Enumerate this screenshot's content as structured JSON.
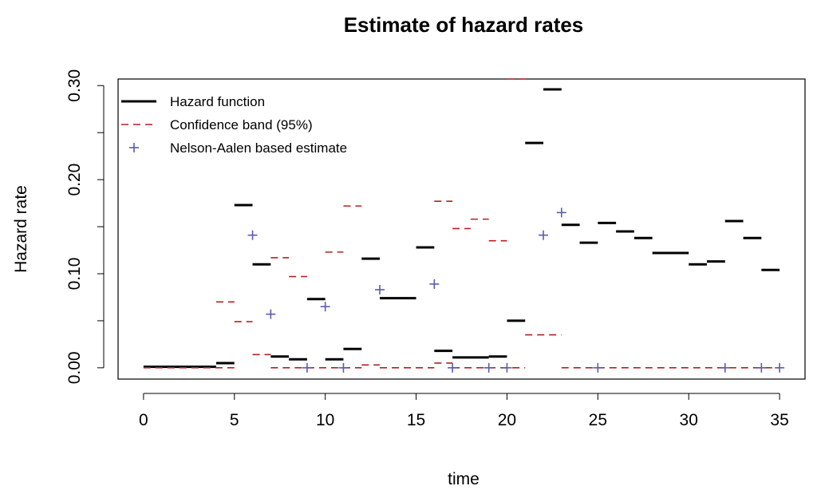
{
  "chart_data": {
    "type": "step",
    "title": "Estimate of hazard rates",
    "xlabel": "time",
    "ylabel": "Hazard rate",
    "xlim": [
      -1.4,
      36.4
    ],
    "ylim": [
      -0.012,
      0.307
    ],
    "xticks": [
      0,
      5,
      10,
      15,
      20,
      25,
      30,
      35
    ],
    "xtick_labels": [
      "0",
      "5",
      "10",
      "15",
      "20",
      "25",
      "30",
      "35"
    ],
    "yticks": [
      0.0,
      0.1,
      0.2,
      0.3
    ],
    "ytick_labels": [
      "0.00",
      "0.10",
      "0.20",
      "0.30"
    ],
    "minor_yticks": [
      0.05,
      0.15,
      0.25
    ],
    "grid": false,
    "legend_position": "top-left",
    "series": [
      {
        "name": "Hazard function",
        "kind": "segments",
        "color": "#000000",
        "line": "solid",
        "segments": [
          [
            0,
            4,
            0.001
          ],
          [
            4,
            5,
            0.005
          ],
          [
            5,
            6,
            0.173
          ],
          [
            6,
            7,
            0.11
          ],
          [
            7,
            8,
            0.012
          ],
          [
            8,
            9,
            0.009
          ],
          [
            9,
            10,
            0.073
          ],
          [
            10,
            11,
            0.009
          ],
          [
            11,
            12,
            0.02
          ],
          [
            12,
            13,
            0.116
          ],
          [
            13,
            15,
            0.074
          ],
          [
            15,
            16,
            0.128
          ],
          [
            16,
            17,
            0.018
          ],
          [
            17,
            19,
            0.011
          ],
          [
            19,
            20,
            0.012
          ],
          [
            20,
            21,
            0.05
          ],
          [
            21,
            22,
            0.239
          ],
          [
            22,
            23,
            0.296
          ],
          [
            23,
            24,
            0.152
          ],
          [
            24,
            25,
            0.133
          ],
          [
            25,
            26,
            0.154
          ],
          [
            26,
            27,
            0.145
          ],
          [
            27,
            28,
            0.138
          ],
          [
            28,
            30,
            0.122
          ],
          [
            30,
            31,
            0.11
          ],
          [
            31,
            32,
            0.113
          ],
          [
            32,
            33,
            0.156
          ],
          [
            33,
            34,
            0.138
          ],
          [
            34,
            35,
            0.104
          ]
        ]
      },
      {
        "name": "Confidence band (95%)",
        "kind": "segments",
        "color": "#b22222",
        "line": "dashed",
        "segments": [
          [
            0,
            5,
            0.0
          ],
          [
            4,
            5,
            0.07
          ],
          [
            5,
            6,
            0.049
          ],
          [
            6,
            7,
            0.014
          ],
          [
            7,
            8,
            0.117
          ],
          [
            7,
            9,
            0.0
          ],
          [
            8,
            9,
            0.097
          ],
          [
            9,
            12,
            0.0
          ],
          [
            10,
            11,
            0.123
          ],
          [
            11,
            12,
            0.172
          ],
          [
            12,
            13,
            0.003
          ],
          [
            13,
            16,
            0.0
          ],
          [
            16,
            17,
            0.005
          ],
          [
            16,
            17,
            0.177
          ],
          [
            17,
            21,
            0.0
          ],
          [
            17,
            18,
            0.148
          ],
          [
            18,
            19,
            0.158
          ],
          [
            19,
            20,
            0.135
          ],
          [
            20,
            21,
            0.307
          ],
          [
            21,
            23,
            0.035
          ],
          [
            23,
            35,
            0.0
          ]
        ]
      },
      {
        "name": "Nelson-Aalen based estimate",
        "kind": "points",
        "color": "#5b5bb0",
        "marker": "plus",
        "x": [
          6,
          7,
          9,
          10,
          11,
          13,
          16,
          17,
          19,
          20,
          22,
          23,
          25,
          32,
          34,
          35
        ],
        "y": [
          0.141,
          0.057,
          0.0,
          0.065,
          0.0,
          0.083,
          0.089,
          0.0,
          0.0,
          0.0,
          0.141,
          0.165,
          0.0,
          0.0,
          0.0,
          0.0
        ]
      }
    ]
  }
}
